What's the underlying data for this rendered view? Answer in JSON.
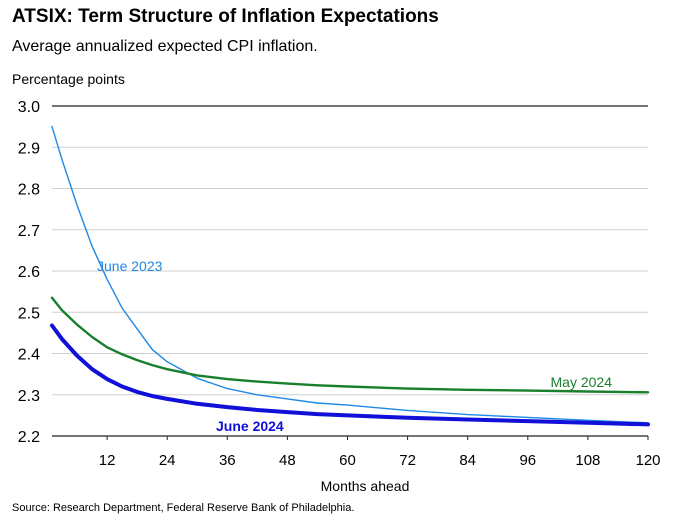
{
  "title": "ATSIX: Term Structure of Inflation Expectations",
  "subtitle": "Average annualized expected CPI inflation.",
  "source": "Source: Research Department, Federal Reserve Bank of Philadelphia.",
  "chart_data": {
    "type": "line",
    "title": "ATSIX: Term Structure of Inflation Expectations",
    "subtitle": "Average annualized expected CPI inflation.",
    "xlabel": "Months ahead",
    "ylabel": "Percentage points",
    "xlim": [
      1,
      120
    ],
    "ylim": [
      2.2,
      3.0
    ],
    "x_ticks": [
      12,
      24,
      36,
      48,
      60,
      72,
      84,
      96,
      108,
      120
    ],
    "y_ticks": [
      2.2,
      2.3,
      2.4,
      2.5,
      2.6,
      2.7,
      2.8,
      2.9,
      3.0
    ],
    "grid": "horizontal",
    "series": [
      {
        "name": "June 2023",
        "color": "#1e88e5",
        "label_position": "left-middle",
        "x": [
          1,
          3,
          6,
          9,
          12,
          15,
          18,
          21,
          24,
          30,
          36,
          42,
          48,
          54,
          60,
          72,
          84,
          96,
          108,
          120
        ],
        "values": [
          2.95,
          2.87,
          2.76,
          2.66,
          2.58,
          2.51,
          2.46,
          2.41,
          2.38,
          2.34,
          2.315,
          2.3,
          2.29,
          2.28,
          2.275,
          2.262,
          2.252,
          2.245,
          2.238,
          2.232
        ]
      },
      {
        "name": "May 2024",
        "color": "#1a7f2c",
        "label_position": "right",
        "x": [
          1,
          3,
          6,
          9,
          12,
          15,
          18,
          21,
          24,
          30,
          36,
          42,
          48,
          54,
          60,
          72,
          84,
          96,
          108,
          120
        ],
        "values": [
          2.535,
          2.505,
          2.47,
          2.44,
          2.415,
          2.398,
          2.384,
          2.372,
          2.362,
          2.347,
          2.338,
          2.332,
          2.327,
          2.323,
          2.32,
          2.315,
          2.312,
          2.31,
          2.308,
          2.306
        ]
      },
      {
        "name": "June 2024",
        "color": "#1010d8",
        "label_position": "bottom-middle",
        "x": [
          1,
          3,
          6,
          9,
          12,
          15,
          18,
          21,
          24,
          30,
          36,
          42,
          48,
          54,
          60,
          72,
          84,
          96,
          108,
          120
        ],
        "values": [
          2.468,
          2.435,
          2.395,
          2.362,
          2.338,
          2.32,
          2.307,
          2.297,
          2.29,
          2.278,
          2.27,
          2.263,
          2.258,
          2.253,
          2.25,
          2.244,
          2.24,
          2.236,
          2.232,
          2.228
        ]
      }
    ]
  }
}
